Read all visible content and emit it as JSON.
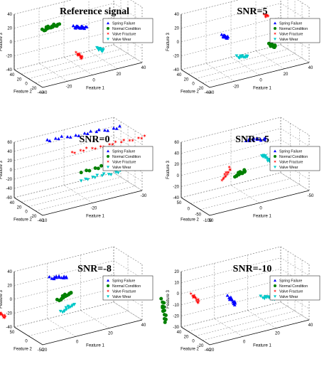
{
  "chart_data": [
    {
      "type": "scatter",
      "title": "Reference signal",
      "xlabel": "Feature 1",
      "ylabel": "Feature 2",
      "zlabel": "Feature 3",
      "xticks": [
        "-40",
        "-20",
        "0",
        "20",
        "40"
      ],
      "yticks": [
        "40",
        "20",
        "0",
        "-20",
        "-40"
      ],
      "zticks": [
        "40",
        "20",
        "0",
        "-20",
        "-40"
      ],
      "legend": [
        "Spring Failure",
        "Normal Condition",
        "Valve Fracture",
        "Valve Wear"
      ],
      "series": [
        {
          "name": "Spring Failure",
          "points": [
            [
              -3,
              0,
              18
            ],
            [
              0,
              0,
              16
            ],
            [
              3,
              0,
              15
            ],
            [
              6,
              0,
              13
            ]
          ]
        },
        {
          "name": "Normal Condition",
          "points": [
            [
              -28,
              0,
              24
            ],
            [
              -24,
              0,
              26
            ],
            [
              -20,
              0,
              27
            ],
            [
              -16,
              0,
              27
            ]
          ]
        },
        {
          "name": "Valve Fracture",
          "points": [
            [
              -8,
              -25,
              -10
            ],
            [
              -6,
              -25,
              -14
            ],
            [
              -4,
              -25,
              -18
            ]
          ]
        },
        {
          "name": "Valve Wear",
          "points": [
            [
              16,
              0,
              -22
            ],
            [
              18,
              0,
              -24
            ],
            [
              20,
              0,
              -26
            ]
          ]
        }
      ]
    },
    {
      "type": "scatter",
      "title": "SNR=5",
      "xlabel": "Feature 1",
      "ylabel": "Feature 2",
      "zlabel": "Feature 3",
      "xticks": [
        "-40",
        "-20",
        "0",
        "20",
        "40"
      ],
      "yticks": [
        "40",
        "20",
        "0",
        "-20",
        "-40"
      ],
      "zticks": [
        "40",
        "20",
        "0",
        "-20",
        "-40"
      ],
      "legend": [
        "Spring Failure",
        "Normal Condition",
        "Valve Fracture",
        "Valve Wear"
      ],
      "series": [
        {
          "name": "Spring Failure",
          "points": [
            [
              -18,
              0,
              12
            ],
            [
              -16,
              0,
              10
            ],
            [
              -14,
              0,
              8
            ]
          ]
        },
        {
          "name": "Normal Condition",
          "points": [
            [
              20,
              0,
              -18
            ],
            [
              22,
              0,
              -20
            ],
            [
              24,
              0,
              -22
            ]
          ]
        },
        {
          "name": "Valve Fracture",
          "points": [
            [
              16,
              0,
              26
            ],
            [
              18,
              0,
              24
            ]
          ]
        },
        {
          "name": "Valve Wear",
          "points": [
            [
              -6,
              0,
              -24
            ],
            [
              -2,
              0,
              -26
            ],
            [
              2,
              0,
              -26
            ]
          ]
        }
      ]
    },
    {
      "type": "scatter",
      "title": "SNR=0",
      "xlabel": "Feature 1",
      "ylabel": "Feature 2",
      "zlabel": "Feature 3",
      "xticks": [
        "-10",
        "-20",
        "-30"
      ],
      "yticks": [
        "40",
        "20",
        "0",
        "-20",
        "-40"
      ],
      "zticks": [
        "60",
        "40",
        "20",
        "0",
        "-20",
        "-40",
        "-60"
      ],
      "legend": [
        "Spring Failure",
        "Normal Condition",
        "Valve Fracture",
        "Valve Wear"
      ],
      "series": [
        {
          "name": "Spring Failure",
          "points": [
            [
              -30,
              20,
              48
            ],
            [
              -25,
              20,
              52
            ],
            [
              -20,
              20,
              56
            ],
            [
              -15,
              20,
              60
            ]
          ]
        },
        {
          "name": "Normal Condition",
          "points": [
            [
              -30,
              -10,
              -10
            ],
            [
              -25,
              -10,
              -8
            ],
            [
              -20,
              -10,
              -6
            ]
          ]
        },
        {
          "name": "Valve Fracture",
          "points": [
            [
              -35,
              20,
              14
            ],
            [
              -30,
              20,
              16
            ],
            [
              -25,
              20,
              18
            ],
            [
              -20,
              20,
              20
            ]
          ]
        },
        {
          "name": "Valve Wear",
          "points": [
            [
              -28,
              -10,
              -28
            ],
            [
              -24,
              -10,
              -26
            ],
            [
              -20,
              -10,
              -24
            ]
          ]
        }
      ]
    },
    {
      "type": "scatter",
      "title": "SNR=-5",
      "xlabel": "Feature 1",
      "ylabel": "Feature 2",
      "zlabel": "Feature 3",
      "xticks": [
        "50",
        "0",
        "-50"
      ],
      "yticks": [
        "50",
        "0",
        "-50",
        "-100"
      ],
      "zticks": [
        "60",
        "40",
        "20",
        "0",
        "-20",
        "-40"
      ],
      "legend": [
        "Spring Failure",
        "Normal Condition",
        "Valve Fracture",
        "Valve Wear"
      ],
      "series": [
        {
          "name": "Spring Failure",
          "points": [
            [
              -30,
              20,
              36
            ],
            [
              -20,
              20,
              40
            ],
            [
              -10,
              20,
              44
            ]
          ]
        },
        {
          "name": "Normal Condition",
          "points": [
            [
              -5,
              0,
              -6
            ],
            [
              0,
              0,
              -8
            ],
            [
              5,
              0,
              -10
            ]
          ]
        },
        {
          "name": "Valve Fracture",
          "points": [
            [
              10,
              0,
              6
            ],
            [
              14,
              0,
              -4
            ],
            [
              18,
              0,
              -10
            ]
          ]
        },
        {
          "name": "Valve Wear",
          "points": [
            [
              -30,
              0,
              0
            ],
            [
              -26,
              0,
              8
            ],
            [
              -22,
              0,
              16
            ]
          ]
        }
      ]
    },
    {
      "type": "scatter",
      "title": "SNR=-8",
      "xlabel": "Feature 1",
      "ylabel": "Feature 2",
      "zlabel": "Feature 3",
      "xticks": [
        "-20",
        "0",
        "20",
        "40"
      ],
      "yticks": [
        "50",
        "0",
        "-50"
      ],
      "zticks": [
        "40",
        "20",
        "0",
        "-20",
        "-40"
      ],
      "legend": [
        "Spring Failure",
        "Normal Condition",
        "Valve Fracture",
        "Valve Wear"
      ],
      "series": [
        {
          "name": "Spring Failure",
          "points": [
            [
              -5,
              10,
              32
            ],
            [
              0,
              10,
              30
            ],
            [
              5,
              10,
              28
            ]
          ]
        },
        {
          "name": "Normal Condition",
          "points": [
            [
              -2,
              0,
              0
            ],
            [
              2,
              0,
              4
            ],
            [
              6,
              0,
              8
            ]
          ]
        },
        {
          "name": "Valve Fracture",
          "points": [
            [
              -38,
              0,
              4
            ],
            [
              -36,
              0,
              0
            ],
            [
              -34,
              0,
              -4
            ]
          ]
        },
        {
          "name": "Valve Wear",
          "points": [
            [
              0,
              0,
              -18
            ],
            [
              4,
              0,
              -14
            ],
            [
              8,
              0,
              -10
            ]
          ]
        }
      ]
    },
    {
      "type": "scatter",
      "title": "SNR=-10",
      "xlabel": "Feature 1",
      "ylabel": "Feature 2",
      "zlabel": "Feature 3",
      "xticks": [
        "-20",
        "0",
        "20",
        "40"
      ],
      "yticks": [
        "40",
        "20",
        "0",
        "-20",
        "-40"
      ],
      "zticks": [
        "20",
        "10",
        "0",
        "-10",
        "-20",
        "-30"
      ],
      "legend": [
        "Spring Failure",
        "Normal Condition",
        "Valve Fracture",
        "Valve Wear"
      ],
      "series": [
        {
          "name": "Spring Failure",
          "points": [
            [
              0,
              0,
              -2
            ],
            [
              2,
              0,
              -6
            ],
            [
              4,
              0,
              -10
            ]
          ]
        },
        {
          "name": "Normal Condition",
          "points": [
            [
              -40,
              0,
              10
            ],
            [
              -39,
              0,
              0
            ],
            [
              -38,
              0,
              -10
            ]
          ]
        },
        {
          "name": "Valve Fracture",
          "points": [
            [
              -22,
              0,
              8
            ],
            [
              -20,
              0,
              4
            ],
            [
              -18,
              0,
              0
            ]
          ]
        },
        {
          "name": "Valve Wear",
          "points": [
            [
              20,
              0,
              -10
            ],
            [
              24,
              0,
              -12
            ],
            [
              28,
              0,
              -14
            ]
          ]
        }
      ]
    }
  ],
  "colors": {
    "Spring Failure": "#0000ff",
    "Normal Condition": "#008000",
    "Valve Fracture": "#ff0000",
    "Valve Wear": "#00c8c8"
  },
  "markers": {
    "Spring Failure": "triangle-up",
    "Normal Condition": "circle",
    "Valve Fracture": "star",
    "Valve Wear": "triangle-down"
  }
}
